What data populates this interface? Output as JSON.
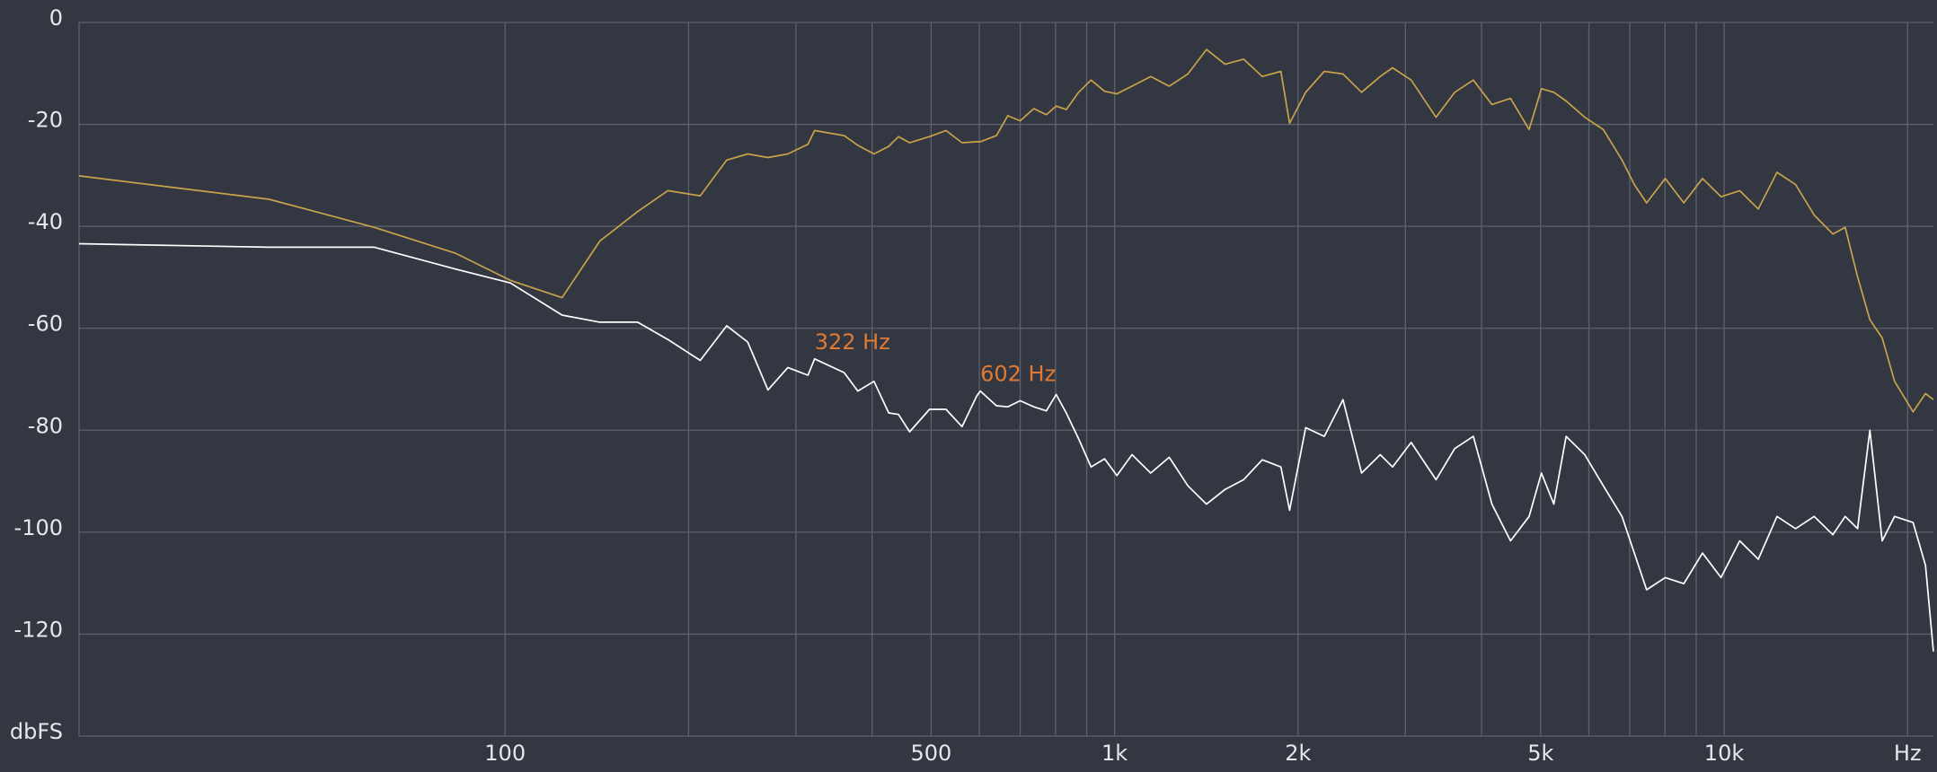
{
  "chart_data": {
    "type": "line",
    "xscale": "log",
    "grid": true,
    "xlim": [
      20,
      22050
    ],
    "ylim": [
      -140,
      0
    ],
    "yticks": [
      0,
      -20,
      -40,
      -60,
      -80,
      -100,
      -120,
      {
        "value": -140,
        "label": "dbFS"
      }
    ],
    "xticks": [
      100,
      500,
      {
        "value": 1000,
        "label": "1k"
      },
      {
        "value": 2000,
        "label": "2k"
      },
      {
        "value": 5000,
        "label": "5k"
      },
      {
        "value": 10000,
        "label": "10k"
      },
      {
        "value": 20000,
        "label": "Hz"
      }
    ],
    "xgrid": [
      100,
      200,
      300,
      400,
      500,
      600,
      700,
      800,
      900,
      1000,
      2000,
      3000,
      4000,
      5000,
      6000,
      7000,
      8000,
      9000,
      10000,
      20000
    ],
    "x": [
      20,
      41,
      61,
      83,
      102,
      124,
      143,
      165,
      185,
      209,
      231,
      250,
      270,
      291,
      314,
      322,
      360,
      379,
      403,
      426,
      442,
      461,
      497,
      529,
      562,
      594,
      602,
      640,
      668,
      700,
      737,
      773,
      802,
      833,
      873,
      915,
      963,
      1009,
      1068,
      1146,
      1229,
      1319,
      1415,
      1518,
      1628,
      1747,
      1874,
      1937,
      2058,
      2208,
      2370,
      2542,
      2728,
      2858,
      3066,
      3368,
      3614,
      3877,
      4160,
      4463,
      4788,
      5016,
      5255,
      5506,
      5906,
      6337,
      6799,
      7124,
      7464,
      8006,
      8589,
      9216,
      9885,
      10607,
      11380,
      12210,
      13100,
      14055,
      15080,
      15800,
      16555,
      17345,
      18170,
      19040,
      20425,
      21400,
      22050
    ],
    "series": [
      {
        "color": "#c9a24b",
        "values": [
          -30.1,
          -34.7,
          -40.2,
          -45.3,
          -50.6,
          -54,
          -42.9,
          -37.1,
          -33,
          -34,
          -27,
          -25.8,
          -26.5,
          -25.8,
          -23.9,
          -21.2,
          -22.2,
          -24.1,
          -25.8,
          -24.3,
          -22.4,
          -23.6,
          -22.4,
          -21.2,
          -23.6,
          -23.4,
          -23.4,
          -22.2,
          -18.3,
          -19.3,
          -16.9,
          -18.1,
          -16.4,
          -17.1,
          -13.7,
          -11.3,
          -13.5,
          -14,
          -12.5,
          -10.6,
          -12.5,
          -10.1,
          -5.3,
          -8.2,
          -7.2,
          -10.6,
          -9.6,
          -19.8,
          -13.7,
          -9.6,
          -10.1,
          -13.7,
          -10.6,
          -8.9,
          -11.3,
          -18.6,
          -13.7,
          -11.3,
          -16.1,
          -14.9,
          -21,
          -13,
          -13.7,
          -15.4,
          -18.6,
          -21,
          -27,
          -31.8,
          -35.4,
          -30.6,
          -35.4,
          -30.6,
          -34.2,
          -33,
          -36.6,
          -29.4,
          -31.8,
          -37.8,
          -41.5,
          -40.2,
          -49.9,
          -58.3,
          -61.9,
          -70.4,
          -76.4,
          -72.8,
          -74
        ]
      },
      {
        "color": "#ffffff",
        "values": [
          -43.4,
          -44.1,
          -44.1,
          -48.4,
          -51.1,
          -57.4,
          -58.8,
          -58.8,
          -62.2,
          -66.3,
          -59.5,
          -62.7,
          -72.1,
          -67.7,
          -69.2,
          -66,
          -68.7,
          -72.3,
          -70.4,
          -76.6,
          -76.9,
          -80.3,
          -75.9,
          -75.9,
          -79.3,
          -73.3,
          -72.3,
          -75.2,
          -75.4,
          -74.2,
          -75.4,
          -76.2,
          -73,
          -76.6,
          -81.7,
          -87.2,
          -85.6,
          -88.9,
          -84.8,
          -88.4,
          -85.3,
          -90.9,
          -94.5,
          -91.6,
          -89.7,
          -85.8,
          -87.2,
          -95.7,
          -79.5,
          -81.2,
          -74,
          -88.4,
          -84.8,
          -87.2,
          -82.4,
          -89.7,
          -83.6,
          -81.2,
          -94.5,
          -101.7,
          -96.9,
          -88.4,
          -94.5,
          -81.2,
          -84.8,
          -90.9,
          -96.9,
          -104.1,
          -111.3,
          -108.9,
          -110.1,
          -104.1,
          -108.9,
          -101.7,
          -105.3,
          -96.9,
          -99.3,
          -96.9,
          -100.5,
          -96.9,
          -99.3,
          -80,
          -101.7,
          -96.9,
          -98.1,
          -106.5,
          -123.4
        ]
      }
    ],
    "annotations": [
      {
        "label": "322 Hz",
        "x": 322,
        "color": "#e07a35"
      },
      {
        "label": "602 Hz",
        "x": 602,
        "color": "#e07a35"
      }
    ]
  }
}
